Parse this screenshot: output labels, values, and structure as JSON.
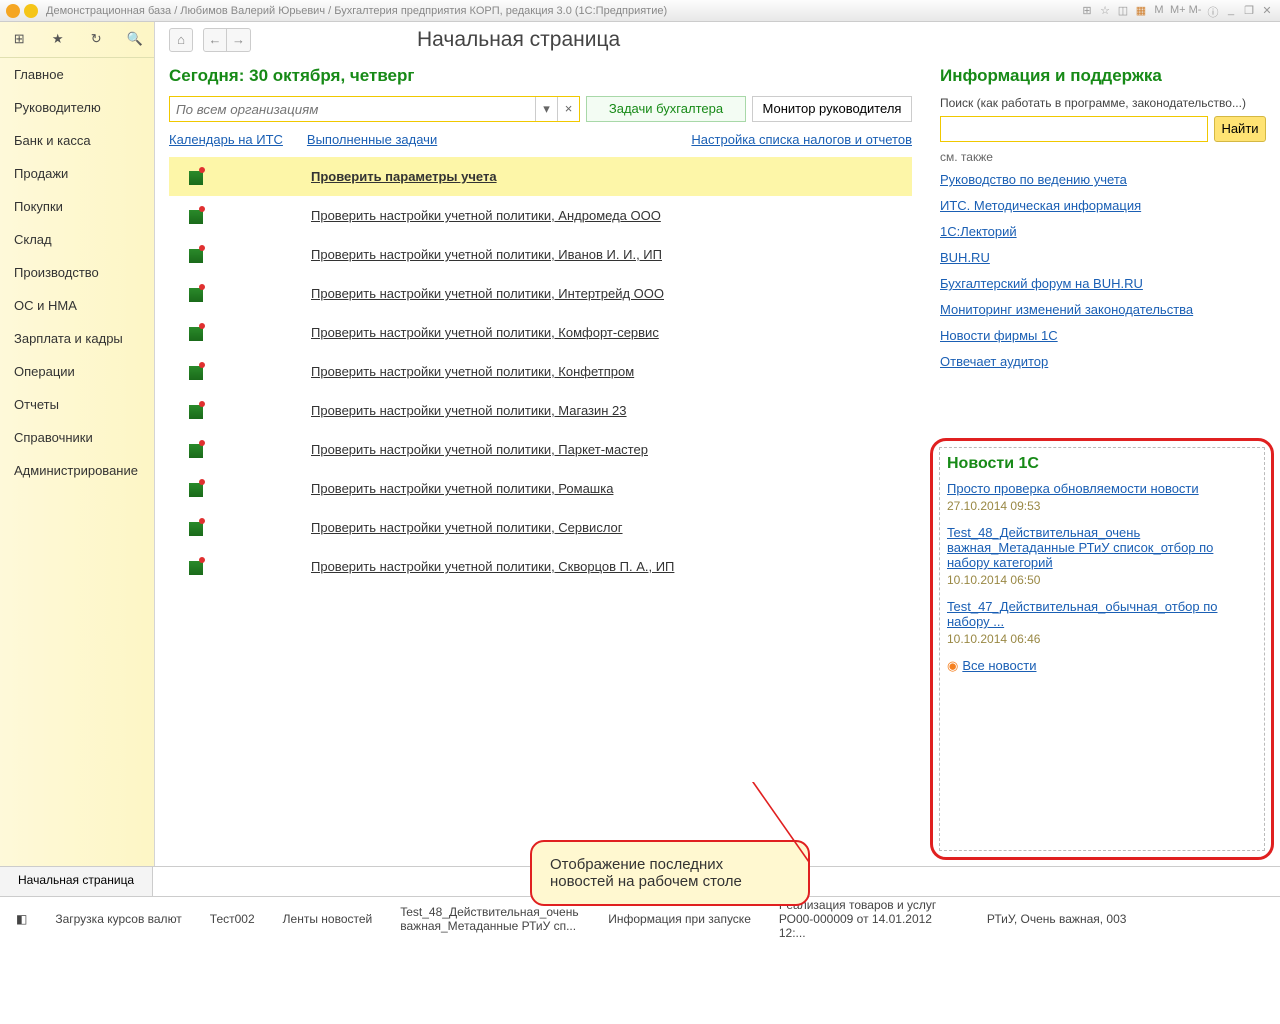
{
  "title": "Демонстрационная база / Любимов Валерий Юрьевич / Бухгалтерия предприятия КОРП, редакция 3.0  (1С:Предприятие)",
  "tbRight": [
    "M",
    "M+",
    "M-"
  ],
  "sidebar": [
    "Главное",
    "Руководителю",
    "Банк и касса",
    "Продажи",
    "Покупки",
    "Склад",
    "Производство",
    "ОС и НМА",
    "Зарплата и кадры",
    "Операции",
    "Отчеты",
    "Справочники",
    "Администрирование"
  ],
  "pageTitle": "Начальная страница",
  "today": "Сегодня: 30 октября, четверг",
  "orgPlaceholder": "По всем организациям",
  "tabA": "Задачи бухгалтера",
  "tabB": "Монитор руководителя",
  "links": {
    "cal": "Календарь на ИТС",
    "done": "Выполненные задачи",
    "cfg": "Настройка списка налогов и отчетов"
  },
  "tasks": [
    {
      "t": "Проверить параметры учета",
      "hl": true
    },
    {
      "t": "Проверить настройки учетной политики, Андромеда ООО"
    },
    {
      "t": "Проверить настройки учетной политики, Иванов И. И., ИП"
    },
    {
      "t": "Проверить настройки учетной политики, Интертрейд ООО"
    },
    {
      "t": "Проверить настройки учетной политики, Комфорт-сервис"
    },
    {
      "t": "Проверить настройки учетной политики, Конфетпром"
    },
    {
      "t": "Проверить настройки учетной политики, Магазин 23"
    },
    {
      "t": "Проверить настройки учетной политики, Паркет-мастер"
    },
    {
      "t": "Проверить настройки учетной политики, Ромашка"
    },
    {
      "t": "Проверить настройки учетной политики, Сервислог"
    },
    {
      "t": "Проверить настройки учетной политики, Скворцов П. А., ИП"
    }
  ],
  "right": {
    "title": "Информация и поддержка",
    "searchLabel": "Поиск (как работать в программе, законодательство...)",
    "findBtn": "Найти",
    "seeAlso": "см. также",
    "links": [
      "Руководство по ведению учета",
      "ИТС. Методическая информация",
      "1С:Лекторий",
      "BUH.RU",
      "Бухгалтерский форум на BUH.RU",
      "Мониторинг изменений законодательства",
      "Новости фирмы 1С",
      "Отвечает аудитор"
    ]
  },
  "news": {
    "title": "Новости 1С",
    "items": [
      {
        "a": "Просто проверка обновляемости новости",
        "d": "27.10.2014 09:53"
      },
      {
        "a": "Test_48_Действительная_очень важная_Метаданные РТиУ список_отбор по набору категорий",
        "d": "10.10.2014 06:50"
      },
      {
        "a": "Test_47_Действительная_обычная_отбор по набору ...",
        "d": "10.10.2014 06:46"
      }
    ],
    "all": "Все новости"
  },
  "callout": "Отображение последних новостей на рабочем столе",
  "bottomTab": "Начальная страница",
  "status": [
    "Загрузка курсов валют",
    "Тест002",
    "Ленты новостей",
    "Test_48_Действительная_очень важная_Метаданные РТиУ сп...",
    "Информация при запуске",
    "Реализация товаров и услуг РО00-000009 от 14.01.2012 12:...",
    "РТиУ, Очень важная, 003"
  ]
}
